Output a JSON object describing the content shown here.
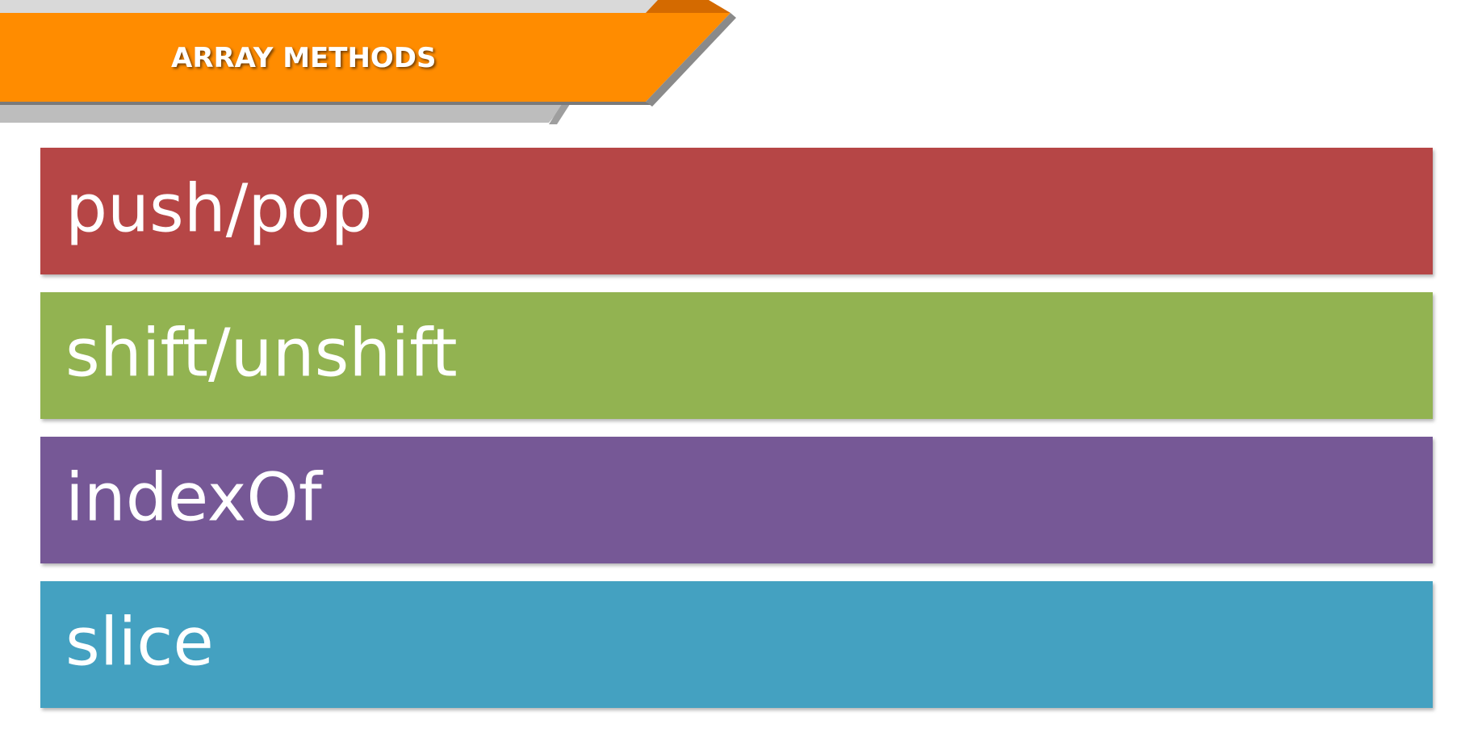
{
  "banner": {
    "title": "ARRAY METHODS",
    "color": "#FF8C00",
    "accent_color": "#D46A00",
    "shadow_color": "#BDBDBD",
    "top_strip_color": "#D9D9D9"
  },
  "items": [
    {
      "label": "push/pop",
      "color": "#B64646"
    },
    {
      "label": "shift/unshift",
      "color": "#92B351"
    },
    {
      "label": "indexOf",
      "color": "#765896"
    },
    {
      "label": "slice",
      "color": "#44A1C1"
    }
  ]
}
